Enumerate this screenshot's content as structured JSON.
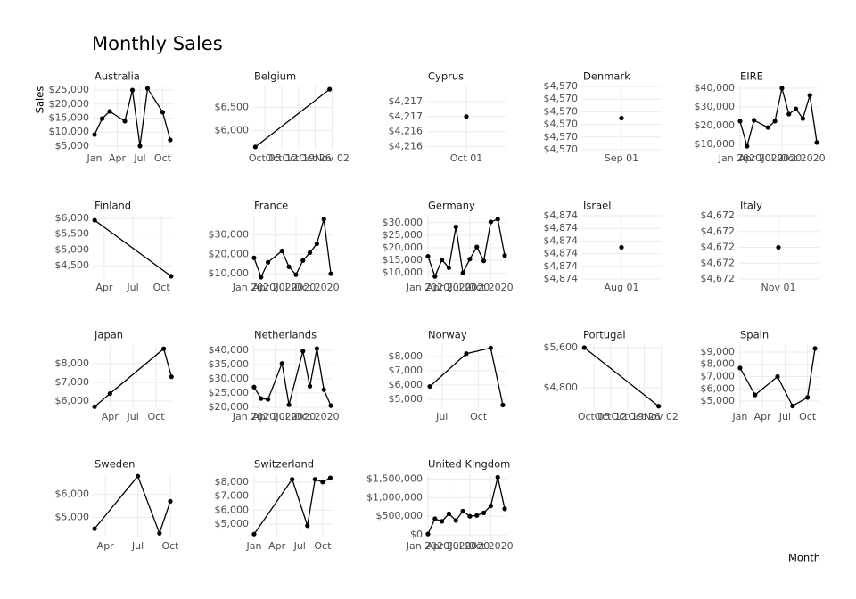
{
  "title": "Monthly Sales",
  "y_label": "Sales",
  "x_label": "Month",
  "chart_data": [
    {
      "type": "line",
      "title": "Australia",
      "color": "#000000",
      "grid": true,
      "x": [
        1,
        2,
        3,
        5,
        6,
        7,
        8,
        10,
        11
      ],
      "values": [
        9100,
        14800,
        17400,
        13900,
        25000,
        5000,
        25600,
        17100,
        7200
      ],
      "xlim": [
        0.76,
        11.36
      ],
      "ylim": [
        3700,
        26300
      ],
      "xticks": [
        {
          "value": 1,
          "label": "Jan"
        },
        {
          "value": 4,
          "label": "Apr"
        },
        {
          "value": 7,
          "label": "Jul"
        },
        {
          "value": 10,
          "label": "Oct"
        }
      ],
      "yticks": [
        {
          "value": 5000,
          "label": "$5,000"
        },
        {
          "value": 10000,
          "label": "$10,000"
        },
        {
          "value": 15000,
          "label": "$15,000"
        },
        {
          "value": 20000,
          "label": "$20,000"
        },
        {
          "value": 25000,
          "label": "$25,000"
        }
      ]
    },
    {
      "type": "line",
      "title": "Belgium",
      "color": "#000000",
      "grid": true,
      "x": [
        10,
        11
      ],
      "values": [
        5650,
        6890
      ],
      "xlim": [
        9.96,
        11.04
      ],
      "ylim": [
        5590,
        6950
      ],
      "xticks": [
        {
          "value": 10.129,
          "label": "Oct 05"
        },
        {
          "value": 10.355,
          "label": "Oct 12"
        },
        {
          "value": 10.581,
          "label": "Oct 19"
        },
        {
          "value": 10.806,
          "label": "Oct 26"
        },
        {
          "value": 11.033,
          "label": "Nov 02"
        }
      ],
      "yticks": [
        {
          "value": 6000,
          "label": "$6,000"
        },
        {
          "value": 6500,
          "label": "$6,500"
        }
      ]
    },
    {
      "type": "line",
      "title": "Cyprus",
      "color": "#000000",
      "grid": true,
      "x": [
        10
      ],
      "values": [
        4216.6
      ],
      "xlim": [
        9.5,
        10.5
      ],
      "ylim": [
        4216.16,
        4217.0
      ],
      "xticks": [
        {
          "value": 10,
          "label": "Oct 01"
        }
      ],
      "yticks": [
        {
          "value": 4216.2,
          "label": "$4,216"
        },
        {
          "value": 4216.4,
          "label": "$4,216"
        },
        {
          "value": 4216.6,
          "label": "$4,217"
        },
        {
          "value": 4216.8,
          "label": "$4,217"
        }
      ]
    },
    {
      "type": "line",
      "title": "Denmark",
      "color": "#000000",
      "grid": true,
      "x": [
        9
      ],
      "values": [
        4570.05
      ],
      "xlim": [
        8.5,
        9.5
      ],
      "ylim": [
        4569.8,
        4570.3
      ],
      "xticks": [
        {
          "value": 9,
          "label": "Sep 01"
        }
      ],
      "yticks": [
        {
          "value": 4569.8,
          "label": "$4,570"
        },
        {
          "value": 4569.9,
          "label": "$4,570"
        },
        {
          "value": 4570.0,
          "label": "$4,570"
        },
        {
          "value": 4570.1,
          "label": "$4,570"
        },
        {
          "value": 4570.2,
          "label": "$4,570"
        },
        {
          "value": 4570.3,
          "label": "$4,570"
        }
      ]
    },
    {
      "type": "line",
      "title": "EIRE",
      "color": "#000000",
      "grid": true,
      "x": [
        1,
        2,
        3,
        5,
        6,
        7,
        8,
        9,
        10,
        11,
        12
      ],
      "values": [
        22400,
        9000,
        22900,
        19000,
        22400,
        40000,
        26200,
        29000,
        23800,
        36200,
        11000
      ],
      "xlim": [
        0.75,
        12.25
      ],
      "ylim": [
        7140,
        40950
      ],
      "xticks": [
        {
          "value": 1,
          "label": "Jan 2020"
        },
        {
          "value": 4,
          "label": "Apr 2020"
        },
        {
          "value": 7,
          "label": "Jul 2020"
        },
        {
          "value": 10,
          "label": "Oct 2020"
        }
      ],
      "yticks": [
        {
          "value": 10000,
          "label": "$10,000"
        },
        {
          "value": 20000,
          "label": "$20,000"
        },
        {
          "value": 30000,
          "label": "$30,000"
        },
        {
          "value": 40000,
          "label": "$40,000"
        }
      ]
    },
    {
      "type": "line",
      "title": "Finland",
      "color": "#000000",
      "grid": true,
      "x": [
        3,
        11
      ],
      "values": [
        5940,
        4170
      ],
      "xlim": [
        2.8,
        11.2
      ],
      "ylim": [
        4083,
        6083
      ],
      "xticks": [
        {
          "value": 4,
          "label": "Apr"
        },
        {
          "value": 7,
          "label": "Jul"
        },
        {
          "value": 10,
          "label": "Oct"
        }
      ],
      "yticks": [
        {
          "value": 4500,
          "label": "$4,500"
        },
        {
          "value": 5000,
          "label": "$5,000"
        },
        {
          "value": 5500,
          "label": "$5,500"
        },
        {
          "value": 6000,
          "label": "$6,000"
        }
      ]
    },
    {
      "type": "line",
      "title": "France",
      "color": "#000000",
      "grid": true,
      "x": [
        1,
        2,
        3,
        5,
        6,
        7,
        8,
        9,
        10,
        11,
        12
      ],
      "values": [
        18200,
        8200,
        15900,
        21800,
        13600,
        9500,
        16800,
        20900,
        25500,
        38200,
        10000
      ],
      "xlim": [
        0.75,
        12.25
      ],
      "ylim": [
        7270,
        40000
      ],
      "xticks": [
        {
          "value": 1,
          "label": "Jan 2020"
        },
        {
          "value": 4,
          "label": "Apr 2020"
        },
        {
          "value": 7,
          "label": "Jul 2020"
        },
        {
          "value": 10,
          "label": "Oct 2020"
        }
      ],
      "yticks": [
        {
          "value": 10000,
          "label": "$10,000"
        },
        {
          "value": 20000,
          "label": "$20,000"
        },
        {
          "value": 30000,
          "label": "$30,000"
        }
      ]
    },
    {
      "type": "line",
      "title": "Germany",
      "color": "#000000",
      "grid": true,
      "x": [
        1,
        2,
        3,
        4,
        5,
        6,
        7,
        8,
        9,
        10,
        11,
        12
      ],
      "values": [
        16600,
        8600,
        15200,
        12100,
        28300,
        10000,
        15500,
        20300,
        14800,
        30300,
        31400,
        16900
      ],
      "xlim": [
        0.75,
        12.25
      ],
      "ylim": [
        7590,
        32760
      ],
      "xticks": [
        {
          "value": 1,
          "label": "Jan 2020"
        },
        {
          "value": 4,
          "label": "Apr 2020"
        },
        {
          "value": 7,
          "label": "Jul 2020"
        },
        {
          "value": 10,
          "label": "Oct 2020"
        }
      ],
      "yticks": [
        {
          "value": 10000,
          "label": "$10,000"
        },
        {
          "value": 15000,
          "label": "$15,000"
        },
        {
          "value": 20000,
          "label": "$20,000"
        },
        {
          "value": 25000,
          "label": "$25,000"
        },
        {
          "value": 30000,
          "label": "$30,000"
        }
      ]
    },
    {
      "type": "line",
      "title": "Israel",
      "color": "#000000",
      "grid": true,
      "x": [
        8
      ],
      "values": [
        4874.05
      ],
      "xlim": [
        7.5,
        8.5
      ],
      "ylim": [
        4873.8,
        4874.3
      ],
      "xticks": [
        {
          "value": 8,
          "label": "Aug 01"
        }
      ],
      "yticks": [
        {
          "value": 4873.8,
          "label": "$4,874"
        },
        {
          "value": 4873.9,
          "label": "$4,874"
        },
        {
          "value": 4874.0,
          "label": "$4,874"
        },
        {
          "value": 4874.1,
          "label": "$4,874"
        },
        {
          "value": 4874.2,
          "label": "$4,874"
        },
        {
          "value": 4874.3,
          "label": "$4,874"
        }
      ]
    },
    {
      "type": "line",
      "title": "Italy",
      "color": "#000000",
      "grid": true,
      "x": [
        11
      ],
      "values": [
        4672.0
      ],
      "xlim": [
        10.5,
        11.5
      ],
      "ylim": [
        4671.8,
        4672.2
      ],
      "xticks": [
        {
          "value": 11,
          "label": "Nov 01"
        }
      ],
      "yticks": [
        {
          "value": 4671.8,
          "label": "$4,672"
        },
        {
          "value": 4671.9,
          "label": "$4,672"
        },
        {
          "value": 4672.0,
          "label": "$4,672"
        },
        {
          "value": 4672.1,
          "label": "$4,672"
        },
        {
          "value": 4672.2,
          "label": "$4,672"
        }
      ]
    },
    {
      "type": "line",
      "title": "Japan",
      "color": "#000000",
      "grid": true,
      "x": [
        2,
        4,
        11,
        12
      ],
      "values": [
        5700,
        6400,
        8800,
        7300
      ],
      "xlim": [
        1.76,
        12.2
      ],
      "ylim": [
        5620,
        9000
      ],
      "xticks": [
        {
          "value": 4,
          "label": "Apr"
        },
        {
          "value": 7,
          "label": "Jul"
        },
        {
          "value": 10,
          "label": "Oct"
        }
      ],
      "yticks": [
        {
          "value": 6000,
          "label": "$6,000"
        },
        {
          "value": 7000,
          "label": "$7,000"
        },
        {
          "value": 8000,
          "label": "$8,000"
        }
      ]
    },
    {
      "type": "line",
      "title": "Netherlands",
      "color": "#000000",
      "grid": true,
      "x": [
        1,
        2,
        3,
        5,
        6,
        8,
        9,
        10,
        11,
        12
      ],
      "values": [
        27100,
        23100,
        22800,
        35400,
        20900,
        39700,
        27400,
        40600,
        26200,
        20600
      ],
      "xlim": [
        0.75,
        12.25
      ],
      "ylim": [
        19700,
        41850
      ],
      "xticks": [
        {
          "value": 1,
          "label": "Jan 2020"
        },
        {
          "value": 4,
          "label": "Apr 2020"
        },
        {
          "value": 7,
          "label": "Jul 2020"
        },
        {
          "value": 10,
          "label": "Oct 2020"
        }
      ],
      "yticks": [
        {
          "value": 20000,
          "label": "$20,000"
        },
        {
          "value": 25000,
          "label": "$25,000"
        },
        {
          "value": 30000,
          "label": "$30,000"
        },
        {
          "value": 35000,
          "label": "$35,000"
        },
        {
          "value": 40000,
          "label": "$40,000"
        }
      ]
    },
    {
      "type": "line",
      "title": "Norway",
      "color": "#000000",
      "grid": true,
      "x": [
        6,
        9,
        11,
        12
      ],
      "values": [
        5900,
        8200,
        8600,
        4600
      ],
      "xlim": [
        5.7,
        12.3
      ],
      "ylim": [
        4375,
        8810
      ],
      "xticks": [
        {
          "value": 7,
          "label": "Jul"
        },
        {
          "value": 10,
          "label": "Oct"
        }
      ],
      "yticks": [
        {
          "value": 5000,
          "label": "$5,000"
        },
        {
          "value": 6000,
          "label": "$6,000"
        },
        {
          "value": 7000,
          "label": "$7,000"
        },
        {
          "value": 8000,
          "label": "$8,000"
        }
      ]
    },
    {
      "type": "line",
      "title": "Portugal",
      "color": "#000000",
      "grid": true,
      "x": [
        10,
        11
      ],
      "values": [
        5600,
        4430
      ],
      "xlim": [
        9.96,
        11.04
      ],
      "ylim": [
        4390,
        5653
      ],
      "xticks": [
        {
          "value": 10.129,
          "label": "Oct 05"
        },
        {
          "value": 10.355,
          "label": "Oct 12"
        },
        {
          "value": 10.581,
          "label": "Oct 19"
        },
        {
          "value": 10.806,
          "label": "Oct 26"
        },
        {
          "value": 11.033,
          "label": "Nov 02"
        }
      ],
      "yticks": [
        {
          "value": 4800,
          "label": "$4,800"
        },
        {
          "value": 5600,
          "label": "$5,600"
        }
      ]
    },
    {
      "type": "line",
      "title": "Spain",
      "color": "#000000",
      "grid": true,
      "x": [
        1,
        3,
        6,
        8,
        10,
        11
      ],
      "values": [
        7700,
        5500,
        7000,
        4600,
        5300,
        9300
      ],
      "xlim": [
        0.77,
        11.47
      ],
      "ylim": [
        4420,
        9580
      ],
      "xticks": [
        {
          "value": 1,
          "label": "Jan"
        },
        {
          "value": 4,
          "label": "Apr"
        },
        {
          "value": 7,
          "label": "Jul"
        },
        {
          "value": 10,
          "label": "Oct"
        }
      ],
      "yticks": [
        {
          "value": 5000,
          "label": "$5,000"
        },
        {
          "value": 6000,
          "label": "$6,000"
        },
        {
          "value": 7000,
          "label": "$7,000"
        },
        {
          "value": 8000,
          "label": "$8,000"
        },
        {
          "value": 9000,
          "label": "$9,000"
        }
      ]
    },
    {
      "type": "line",
      "title": "Sweden",
      "color": "#000000",
      "grid": true,
      "x": [
        3,
        7,
        9,
        10
      ],
      "values": [
        4500,
        6800,
        4300,
        5700
      ],
      "xlim": [
        2.83,
        10.25
      ],
      "ylim": [
        4115,
        6885
      ],
      "xticks": [
        {
          "value": 4,
          "label": "Apr"
        },
        {
          "value": 7,
          "label": "Jul"
        },
        {
          "value": 10,
          "label": "Oct"
        }
      ],
      "yticks": [
        {
          "value": 5000,
          "label": "$5,000"
        },
        {
          "value": 6000,
          "label": "$6,000"
        }
      ]
    },
    {
      "type": "line",
      "title": "Switzerland",
      "color": "#000000",
      "grid": true,
      "x": [
        1,
        6,
        8,
        9,
        10,
        11
      ],
      "values": [
        4300,
        8200,
        4900,
        8200,
        8000,
        8300
      ],
      "xlim": [
        0.77,
        11.3
      ],
      "ylim": [
        4060,
        8560
      ],
      "xticks": [
        {
          "value": 1,
          "label": "Jan"
        },
        {
          "value": 4,
          "label": "Apr"
        },
        {
          "value": 7,
          "label": "Jul"
        },
        {
          "value": 10,
          "label": "Oct"
        }
      ],
      "yticks": [
        {
          "value": 5000,
          "label": "$5,000"
        },
        {
          "value": 6000,
          "label": "$6,000"
        },
        {
          "value": 7000,
          "label": "$7,000"
        },
        {
          "value": 8000,
          "label": "$8,000"
        }
      ]
    },
    {
      "type": "line",
      "title": "United Kingdom",
      "color": "#000000",
      "grid": true,
      "x": [
        1,
        2,
        3,
        4,
        5,
        6,
        7,
        8,
        9,
        10,
        11,
        12
      ],
      "values": [
        23000,
        432000,
        364000,
        568000,
        386000,
        636000,
        500000,
        523000,
        591000,
        780000,
        1550000,
        700000
      ],
      "xlim": [
        0.75,
        12.25
      ],
      "ylim": [
        -70000,
        1630000
      ],
      "xticks": [
        {
          "value": 1,
          "label": "Jan 2020"
        },
        {
          "value": 4,
          "label": "Apr 2020"
        },
        {
          "value": 7,
          "label": "Jul 2020"
        },
        {
          "value": 10,
          "label": "Oct 2020"
        }
      ],
      "yticks": [
        {
          "value": 0,
          "label": "$0"
        },
        {
          "value": 500000,
          "label": "$500,000"
        },
        {
          "value": 1000000,
          "label": "$1,000,000"
        },
        {
          "value": 1500000,
          "label": "$1,500,000"
        }
      ]
    }
  ]
}
